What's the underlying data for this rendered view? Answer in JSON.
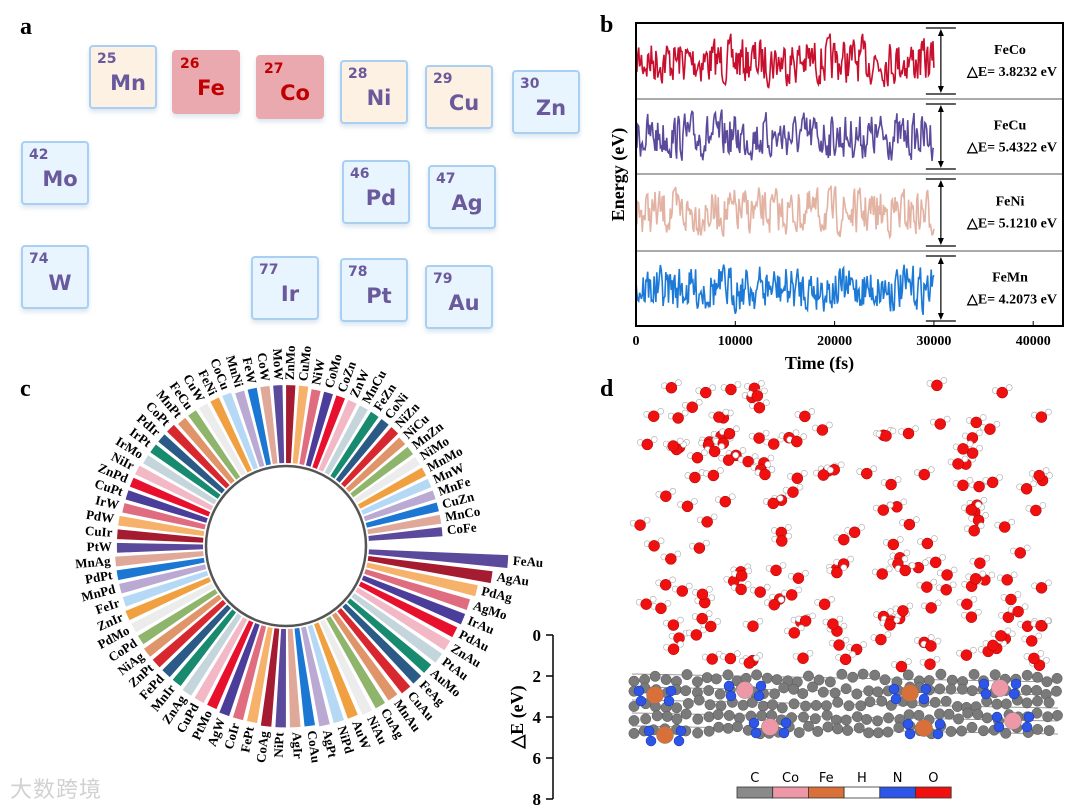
{
  "panel_labels": {
    "a": "a",
    "b": "b",
    "c": "c",
    "d": "d"
  },
  "periodic_table": [
    {
      "number": "25",
      "symbol": "Mn",
      "style": "warm"
    },
    {
      "number": "26",
      "symbol": "Fe",
      "style": "hot"
    },
    {
      "number": "27",
      "symbol": "Co",
      "style": "hot"
    },
    {
      "number": "28",
      "symbol": "Ni",
      "style": "warm"
    },
    {
      "number": "29",
      "symbol": "Cu",
      "style": "warm"
    },
    {
      "number": "30",
      "symbol": "Zn",
      "style": "cool"
    },
    {
      "number": "42",
      "symbol": "Mo",
      "style": "cool"
    },
    {
      "number": "46",
      "symbol": "Pd",
      "style": "cool"
    },
    {
      "number": "47",
      "symbol": "Ag",
      "style": "cool"
    },
    {
      "number": "74",
      "symbol": "W",
      "style": "cool"
    },
    {
      "number": "77",
      "symbol": "Ir",
      "style": "cool"
    },
    {
      "number": "78",
      "symbol": "Pt",
      "style": "cool"
    },
    {
      "number": "79",
      "symbol": "Au",
      "style": "cool"
    }
  ],
  "chart_data": [
    {
      "type": "line",
      "panel": "b",
      "xlabel": "Time (fs)",
      "ylabel": "Energy (eV)",
      "xlim": [
        0,
        43000
      ],
      "xticks": [
        "0",
        "10000",
        "20000",
        "30000",
        "40000"
      ],
      "series": [
        {
          "name": "FeCo",
          "delta_label": "△E= 3.8232 eV",
          "delta_e": 3.8232,
          "t_end": 30000,
          "color": "#c8102e"
        },
        {
          "name": "FeCu",
          "delta_label": "△E= 5.4322 eV",
          "delta_e": 5.4322,
          "t_end": 30000,
          "color": "#5b4a9b"
        },
        {
          "name": "FeNi",
          "delta_label": "△E= 5.1210 eV",
          "delta_e": 5.121,
          "t_end": 30000,
          "color": "#e2b2a2"
        },
        {
          "name": "FeMn",
          "delta_label": "△E= 4.2073 eV",
          "delta_e": 4.2073,
          "t_end": 30000,
          "color": "#1c7ad6"
        }
      ]
    },
    {
      "type": "bar",
      "subtype": "circular",
      "panel": "c",
      "ylabel": "△E (eV)",
      "ylim": [
        0,
        8
      ],
      "yticks": [
        "0",
        "2",
        "4",
        "6",
        "8"
      ],
      "categories": [
        "FeAu",
        "AgAu",
        "PdAg",
        "AgMo",
        "IrAu",
        "PdAu",
        "ZnAu",
        "PtAu",
        "AuMo",
        "FeAg",
        "CuAu",
        "MnAu",
        "CuAg",
        "NiAu",
        "AuW",
        "NiPd",
        "AgPt",
        "CoAu",
        "AgIr",
        "NiPt",
        "CoAg",
        "FePt",
        "CoIr",
        "AgW",
        "PtMo",
        "CuPd",
        "ZnAg",
        "MnIr",
        "FePd",
        "ZnPt",
        "NiAg",
        "CoPd",
        "PdMo",
        "ZnIr",
        "FeIr",
        "MnPd",
        "PdPt",
        "MnAg",
        "PtW",
        "CuIr",
        "PdW",
        "IrW",
        "CuPt",
        "ZnPd",
        "NiIr",
        "IrMo",
        "IrPt",
        "PdIr",
        "CoPt",
        "MnPt",
        "FeCu",
        "CuW",
        "FeNi",
        "CoCu",
        "MnNi",
        "FeW",
        "CoW",
        "MoW",
        "ZnMo",
        "CuMo",
        "NiW",
        "CoMo",
        "CoZn",
        "ZnW",
        "MnCu",
        "FeZn",
        "CoNi",
        "NiZn",
        "NiCu",
        "MnZn",
        "NiMo",
        "MnMo",
        "MnW",
        "MnFe",
        "CuZn",
        "MnCo",
        "CoFe"
      ],
      "values": [
        6.8,
        6.1,
        5.5,
        5.3,
        5.3,
        5.2,
        5.2,
        5.2,
        5.1,
        5.1,
        5.1,
        5.0,
        5.0,
        5.0,
        4.9,
        4.9,
        4.9,
        4.8,
        4.8,
        4.8,
        4.8,
        4.7,
        4.7,
        4.7,
        4.6,
        4.6,
        4.6,
        4.5,
        4.5,
        4.5,
        4.5,
        4.4,
        4.4,
        4.4,
        4.3,
        4.3,
        4.3,
        4.3,
        4.2,
        4.2,
        4.2,
        4.1,
        4.1,
        4.1,
        4.1,
        4.0,
        4.0,
        4.0,
        4.0,
        3.9,
        3.9,
        3.9,
        3.9,
        3.9,
        3.8,
        3.8,
        3.8,
        3.8,
        3.8,
        3.8,
        3.7,
        3.7,
        3.7,
        3.7,
        3.7,
        3.7,
        3.7,
        3.7,
        3.6,
        3.6,
        3.6,
        3.6,
        3.6,
        3.6,
        3.6,
        3.6,
        3.6
      ],
      "palette": [
        "#5b4a9b",
        "#a51c30",
        "#f6b26b",
        "#e06c80",
        "#4b3d9a",
        "#e8112d",
        "#f2b8c6",
        "#c5d5dc",
        "#178a6f",
        "#2a5a85",
        "#d7282f",
        "#e0946a",
        "#8fb56c",
        "#ececec",
        "#f0a040",
        "#b5d8f5",
        "#b9a9d3",
        "#1c77d2",
        "#dfa898"
      ]
    }
  ],
  "structure_legend": [
    {
      "label": "C",
      "color": "#8a8a8a"
    },
    {
      "label": "Co",
      "color": "#ee97a7"
    },
    {
      "label": "Fe",
      "color": "#d9703a"
    },
    {
      "label": "H",
      "color": "#ffffff"
    },
    {
      "label": "N",
      "color": "#2d55e8"
    },
    {
      "label": "O",
      "color": "#f01010"
    }
  ],
  "watermark": "大数跨境"
}
